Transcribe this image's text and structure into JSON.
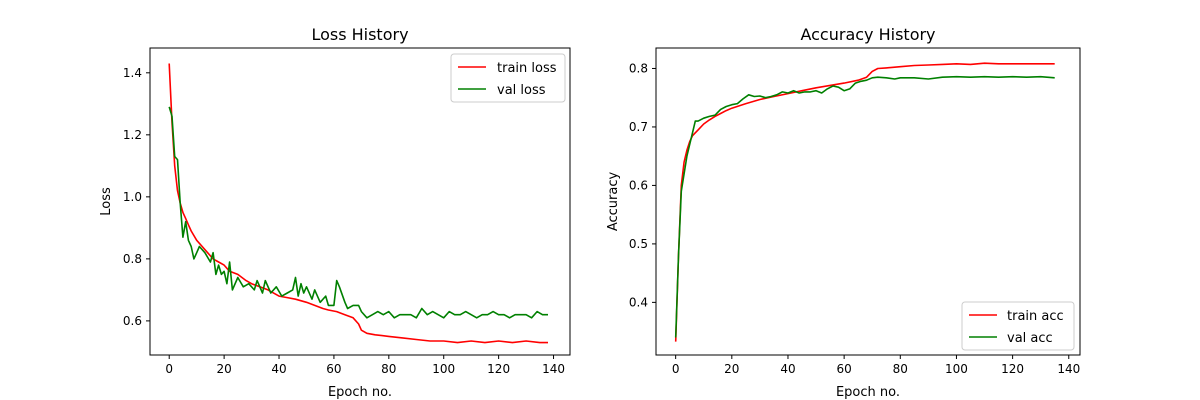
{
  "chart_data": [
    {
      "type": "line",
      "title": "Loss History",
      "xlabel": "Epoch no.",
      "ylabel": "Loss",
      "xlim": [
        -7,
        146
      ],
      "ylim": [
        0.49,
        1.48
      ],
      "xticks": [
        0,
        20,
        40,
        60,
        80,
        100,
        120,
        140
      ],
      "yticks": [
        0.6,
        0.8,
        1.0,
        1.2,
        1.4
      ],
      "ytick_labels": [
        "0.6",
        "0.8",
        "1.0",
        "1.2",
        "1.4"
      ],
      "grid": false,
      "legend": "top-right",
      "series": [
        {
          "name": "train loss",
          "color": "#ff0000",
          "points": [
            [
              0,
              1.43
            ],
            [
              1,
              1.24
            ],
            [
              2,
              1.1
            ],
            [
              3,
              1.02
            ],
            [
              4,
              0.98
            ],
            [
              5,
              0.95
            ],
            [
              6,
              0.93
            ],
            [
              7,
              0.91
            ],
            [
              8,
              0.89
            ],
            [
              10,
              0.86
            ],
            [
              12,
              0.84
            ],
            [
              14,
              0.82
            ],
            [
              16,
              0.8
            ],
            [
              18,
              0.79
            ],
            [
              20,
              0.78
            ],
            [
              22,
              0.76
            ],
            [
              25,
              0.75
            ],
            [
              28,
              0.73
            ],
            [
              30,
              0.72
            ],
            [
              33,
              0.71
            ],
            [
              36,
              0.7
            ],
            [
              40,
              0.68
            ],
            [
              43,
              0.675
            ],
            [
              46,
              0.67
            ],
            [
              50,
              0.66
            ],
            [
              53,
              0.65
            ],
            [
              56,
              0.64
            ],
            [
              58,
              0.635
            ],
            [
              61,
              0.63
            ],
            [
              64,
              0.62
            ],
            [
              67,
              0.61
            ],
            [
              69,
              0.59
            ],
            [
              70,
              0.57
            ],
            [
              72,
              0.56
            ],
            [
              75,
              0.555
            ],
            [
              80,
              0.55
            ],
            [
              85,
              0.545
            ],
            [
              90,
              0.54
            ],
            [
              95,
              0.535
            ],
            [
              100,
              0.535
            ],
            [
              105,
              0.53
            ],
            [
              110,
              0.535
            ],
            [
              115,
              0.53
            ],
            [
              120,
              0.535
            ],
            [
              125,
              0.53
            ],
            [
              130,
              0.535
            ],
            [
              135,
              0.53
            ],
            [
              138,
              0.53
            ]
          ]
        },
        {
          "name": "val loss",
          "color": "#008000",
          "points": [
            [
              0,
              1.29
            ],
            [
              1,
              1.26
            ],
            [
              2,
              1.13
            ],
            [
              3,
              1.12
            ],
            [
              4,
              0.98
            ],
            [
              5,
              0.87
            ],
            [
              6,
              0.92
            ],
            [
              7,
              0.86
            ],
            [
              8,
              0.84
            ],
            [
              9,
              0.8
            ],
            [
              10,
              0.82
            ],
            [
              11,
              0.84
            ],
            [
              13,
              0.82
            ],
            [
              15,
              0.79
            ],
            [
              16,
              0.82
            ],
            [
              17,
              0.75
            ],
            [
              18,
              0.78
            ],
            [
              19,
              0.75
            ],
            [
              20,
              0.76
            ],
            [
              21,
              0.72
            ],
            [
              22,
              0.79
            ],
            [
              23,
              0.7
            ],
            [
              25,
              0.74
            ],
            [
              27,
              0.71
            ],
            [
              29,
              0.72
            ],
            [
              31,
              0.7
            ],
            [
              32,
              0.73
            ],
            [
              34,
              0.69
            ],
            [
              35,
              0.73
            ],
            [
              37,
              0.69
            ],
            [
              39,
              0.71
            ],
            [
              41,
              0.68
            ],
            [
              43,
              0.69
            ],
            [
              45,
              0.7
            ],
            [
              46,
              0.74
            ],
            [
              47,
              0.68
            ],
            [
              48,
              0.72
            ],
            [
              49,
              0.69
            ],
            [
              50,
              0.71
            ],
            [
              52,
              0.67
            ],
            [
              53,
              0.7
            ],
            [
              55,
              0.66
            ],
            [
              57,
              0.68
            ],
            [
              58,
              0.65
            ],
            [
              60,
              0.65
            ],
            [
              61,
              0.73
            ],
            [
              62,
              0.71
            ],
            [
              64,
              0.66
            ],
            [
              65,
              0.64
            ],
            [
              67,
              0.65
            ],
            [
              69,
              0.65
            ],
            [
              70,
              0.63
            ],
            [
              72,
              0.61
            ],
            [
              74,
              0.62
            ],
            [
              76,
              0.63
            ],
            [
              78,
              0.62
            ],
            [
              80,
              0.63
            ],
            [
              82,
              0.61
            ],
            [
              84,
              0.62
            ],
            [
              86,
              0.62
            ],
            [
              88,
              0.62
            ],
            [
              90,
              0.61
            ],
            [
              92,
              0.64
            ],
            [
              94,
              0.62
            ],
            [
              96,
              0.63
            ],
            [
              98,
              0.62
            ],
            [
              100,
              0.61
            ],
            [
              102,
              0.63
            ],
            [
              104,
              0.62
            ],
            [
              106,
              0.62
            ],
            [
              108,
              0.63
            ],
            [
              110,
              0.62
            ],
            [
              112,
              0.61
            ],
            [
              114,
              0.62
            ],
            [
              116,
              0.62
            ],
            [
              118,
              0.63
            ],
            [
              120,
              0.62
            ],
            [
              122,
              0.62
            ],
            [
              124,
              0.61
            ],
            [
              126,
              0.62
            ],
            [
              128,
              0.62
            ],
            [
              130,
              0.62
            ],
            [
              132,
              0.61
            ],
            [
              134,
              0.63
            ],
            [
              136,
              0.62
            ],
            [
              138,
              0.62
            ]
          ]
        }
      ]
    },
    {
      "type": "line",
      "title": "Accuracy History",
      "xlabel": "Epoch no.",
      "ylabel": "Accuracy",
      "xlim": [
        -7,
        144
      ],
      "ylim": [
        0.31,
        0.835
      ],
      "xticks": [
        0,
        20,
        40,
        60,
        80,
        100,
        120,
        140
      ],
      "yticks": [
        0.4,
        0.5,
        0.6,
        0.7,
        0.8
      ],
      "ytick_labels": [
        "0.4",
        "0.5",
        "0.6",
        "0.7",
        "0.8"
      ],
      "grid": false,
      "legend": "bottom-right",
      "series": [
        {
          "name": "train acc",
          "color": "#ff0000",
          "points": [
            [
              0,
              0.333
            ],
            [
              1,
              0.48
            ],
            [
              2,
              0.6
            ],
            [
              3,
              0.64
            ],
            [
              4,
              0.66
            ],
            [
              5,
              0.675
            ],
            [
              6,
              0.685
            ],
            [
              8,
              0.695
            ],
            [
              10,
              0.705
            ],
            [
              12,
              0.712
            ],
            [
              14,
              0.718
            ],
            [
              16,
              0.723
            ],
            [
              18,
              0.728
            ],
            [
              20,
              0.732
            ],
            [
              25,
              0.74
            ],
            [
              30,
              0.747
            ],
            [
              35,
              0.752
            ],
            [
              40,
              0.757
            ],
            [
              45,
              0.762
            ],
            [
              50,
              0.767
            ],
            [
              55,
              0.771
            ],
            [
              60,
              0.775
            ],
            [
              65,
              0.78
            ],
            [
              68,
              0.785
            ],
            [
              70,
              0.795
            ],
            [
              72,
              0.8
            ],
            [
              75,
              0.801
            ],
            [
              80,
              0.803
            ],
            [
              85,
              0.805
            ],
            [
              90,
              0.806
            ],
            [
              95,
              0.807
            ],
            [
              100,
              0.808
            ],
            [
              105,
              0.807
            ],
            [
              110,
              0.809
            ],
            [
              115,
              0.808
            ],
            [
              120,
              0.808
            ],
            [
              125,
              0.808
            ],
            [
              130,
              0.808
            ],
            [
              135,
              0.808
            ]
          ]
        },
        {
          "name": "val acc",
          "color": "#008000",
          "points": [
            [
              0,
              0.34
            ],
            [
              1,
              0.48
            ],
            [
              2,
              0.59
            ],
            [
              3,
              0.62
            ],
            [
              4,
              0.65
            ],
            [
              5,
              0.67
            ],
            [
              6,
              0.69
            ],
            [
              7,
              0.71
            ],
            [
              8,
              0.71
            ],
            [
              10,
              0.715
            ],
            [
              12,
              0.718
            ],
            [
              14,
              0.72
            ],
            [
              16,
              0.73
            ],
            [
              18,
              0.735
            ],
            [
              20,
              0.738
            ],
            [
              22,
              0.74
            ],
            [
              24,
              0.748
            ],
            [
              26,
              0.755
            ],
            [
              28,
              0.752
            ],
            [
              30,
              0.753
            ],
            [
              32,
              0.75
            ],
            [
              34,
              0.752
            ],
            [
              36,
              0.755
            ],
            [
              38,
              0.76
            ],
            [
              40,
              0.758
            ],
            [
              42,
              0.762
            ],
            [
              44,
              0.758
            ],
            [
              46,
              0.76
            ],
            [
              48,
              0.76
            ],
            [
              50,
              0.762
            ],
            [
              52,
              0.758
            ],
            [
              54,
              0.765
            ],
            [
              56,
              0.77
            ],
            [
              58,
              0.768
            ],
            [
              60,
              0.762
            ],
            [
              62,
              0.765
            ],
            [
              64,
              0.775
            ],
            [
              66,
              0.778
            ],
            [
              68,
              0.78
            ],
            [
              70,
              0.784
            ],
            [
              72,
              0.785
            ],
            [
              75,
              0.784
            ],
            [
              78,
              0.782
            ],
            [
              80,
              0.784
            ],
            [
              85,
              0.784
            ],
            [
              90,
              0.782
            ],
            [
              95,
              0.785
            ],
            [
              100,
              0.786
            ],
            [
              105,
              0.785
            ],
            [
              110,
              0.786
            ],
            [
              115,
              0.785
            ],
            [
              120,
              0.786
            ],
            [
              125,
              0.785
            ],
            [
              130,
              0.786
            ],
            [
              135,
              0.784
            ]
          ]
        }
      ]
    }
  ]
}
